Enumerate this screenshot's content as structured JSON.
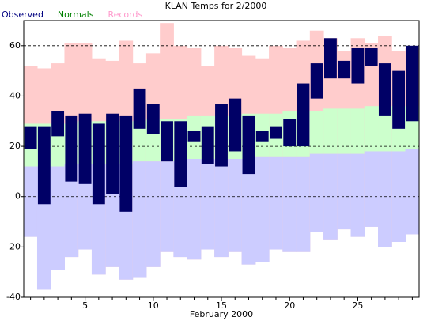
{
  "chart_data": {
    "type": "range-bar",
    "title": "KLAN Temps for 2/2000",
    "xlabel": "February 2000",
    "x": [
      1,
      2,
      3,
      4,
      5,
      6,
      7,
      8,
      9,
      10,
      11,
      12,
      13,
      14,
      15,
      16,
      17,
      18,
      19,
      20,
      21,
      22,
      23,
      24,
      25,
      26,
      27,
      28,
      29
    ],
    "xlim": [
      0.5,
      29.5
    ],
    "xticks": [
      5,
      10,
      15,
      20,
      25
    ],
    "ylim": [
      -40,
      70
    ],
    "yticks": [
      -40,
      -20,
      0,
      20,
      40,
      60
    ],
    "grid": true,
    "below_normal_color": "#ccccff",
    "series": [
      {
        "name": "Observed",
        "color": "#000066",
        "legend_color": "#000080",
        "high": [
          28,
          28,
          34,
          32,
          33,
          29,
          33,
          32,
          43,
          37,
          30,
          30,
          26,
          28,
          37,
          39,
          32,
          26,
          28,
          31,
          45,
          53,
          63,
          54,
          59,
          59,
          53,
          50,
          60
        ],
        "low": [
          19,
          -3,
          24,
          6,
          5,
          -3,
          1,
          -6,
          27,
          25,
          14,
          4,
          22,
          13,
          12,
          18,
          9,
          22,
          23,
          20,
          20,
          39,
          47,
          47,
          45,
          52,
          32,
          27,
          30
        ]
      },
      {
        "name": "Normals",
        "color": "#ccffcc",
        "legend_color": "#008000",
        "high": [
          29,
          29,
          29,
          29,
          30,
          30,
          30,
          30,
          30,
          31,
          31,
          31,
          32,
          32,
          32,
          32,
          33,
          33,
          33,
          34,
          34,
          34,
          35,
          35,
          35,
          36,
          36,
          36,
          36
        ],
        "low": [
          12,
          12,
          12,
          13,
          13,
          13,
          13,
          13,
          14,
          14,
          14,
          14,
          15,
          15,
          15,
          15,
          15,
          16,
          16,
          16,
          16,
          17,
          17,
          17,
          17,
          18,
          18,
          18,
          19
        ]
      },
      {
        "name": "Records",
        "color": "#ffcccc",
        "legend_color": "#ff99cc",
        "high": [
          52,
          51,
          53,
          61,
          61,
          55,
          54,
          62,
          53,
          57,
          69,
          60,
          59,
          52,
          60,
          59,
          56,
          55,
          60,
          59,
          62,
          66,
          63,
          58,
          63,
          61,
          64,
          58,
          59
        ],
        "low": [
          -16,
          -37,
          -29,
          -24,
          -21,
          -31,
          -28,
          -33,
          -32,
          -28,
          -22,
          -24,
          -25,
          -21,
          -24,
          -22,
          -27,
          -26,
          -21,
          -22,
          -22,
          -14,
          -17,
          -13,
          -16,
          -12,
          -20,
          -18,
          -15
        ]
      }
    ]
  }
}
